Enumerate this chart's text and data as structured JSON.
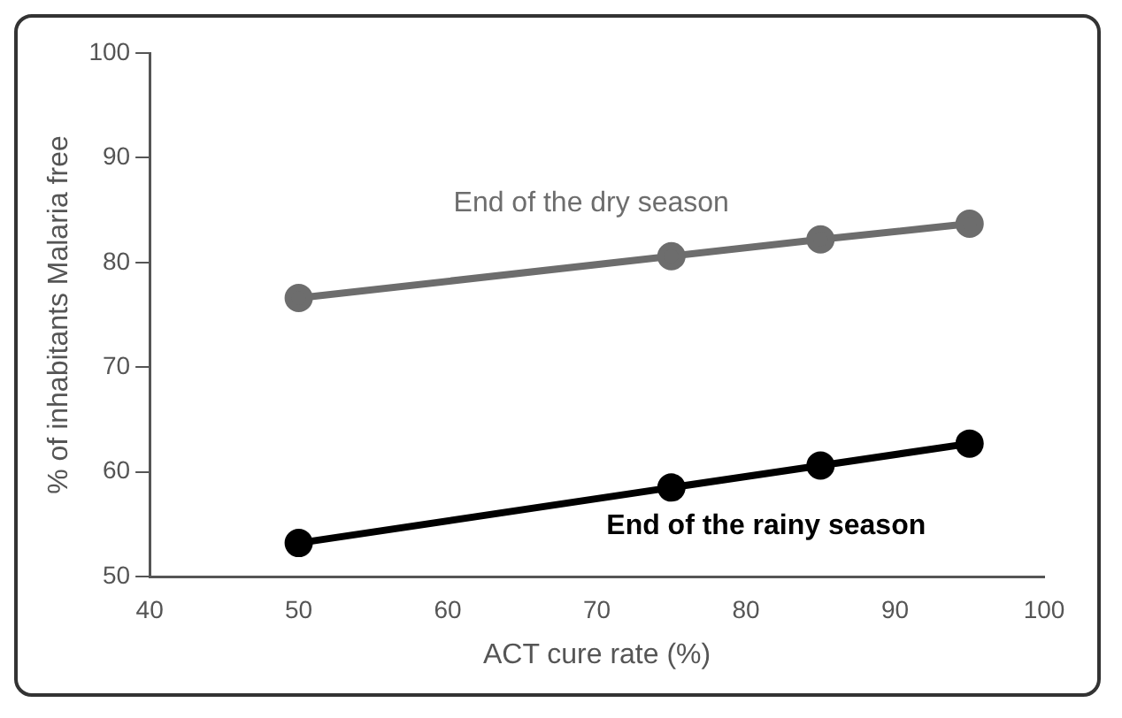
{
  "chart_data": {
    "type": "line",
    "xlabel": "ACT cure rate (%)",
    "ylabel": "% of inhabitants Malaria free",
    "x": [
      50,
      75,
      85,
      95
    ],
    "series": [
      {
        "name": "End of the dry season",
        "color": "#6d6d6d",
        "values": [
          76.6,
          80.6,
          82.2,
          83.7
        ]
      },
      {
        "name": "End of the rainy season",
        "color": "#000000",
        "values": [
          53.2,
          58.5,
          60.6,
          62.7
        ]
      }
    ],
    "xlim": [
      40,
      100
    ],
    "xticks": [
      40,
      50,
      60,
      70,
      80,
      90,
      100
    ],
    "ylim": [
      50,
      100
    ],
    "yticks": [
      50,
      60,
      70,
      80,
      90,
      100
    ],
    "grid": false,
    "legend": false,
    "marker": "circle",
    "line_style": "solid"
  }
}
